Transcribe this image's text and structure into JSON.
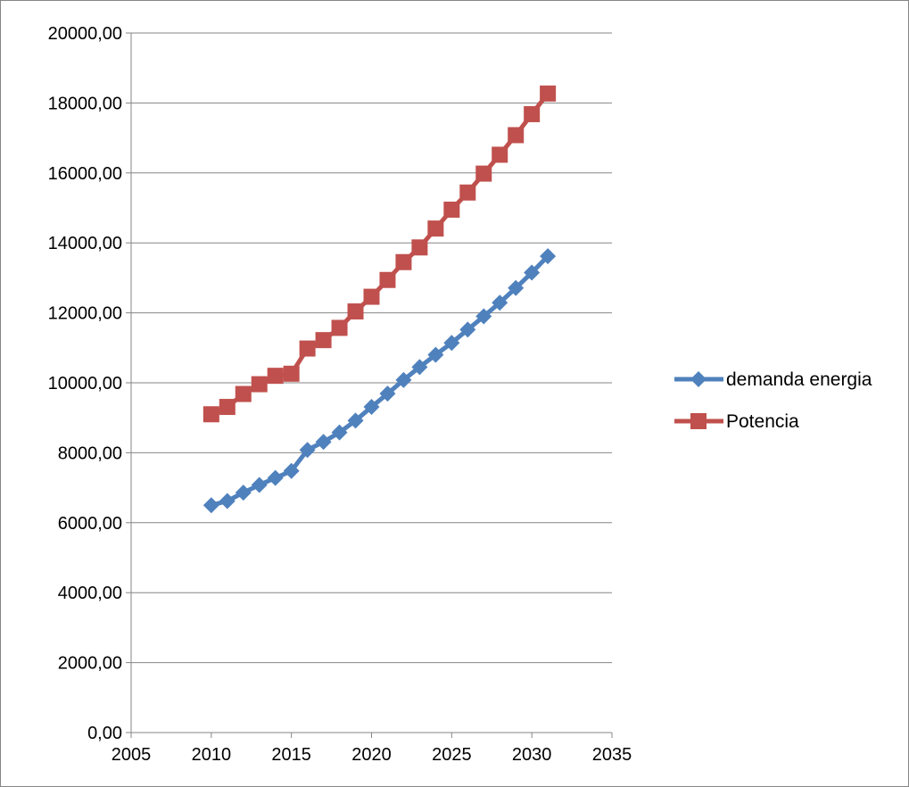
{
  "chart_data": {
    "type": "scatter",
    "title": "",
    "xlabel": "",
    "ylabel": "",
    "xlim": [
      2005,
      2035
    ],
    "ylim": [
      0,
      20000
    ],
    "x_ticks": [
      2005,
      2010,
      2015,
      2020,
      2025,
      2030,
      2035
    ],
    "y_ticks": [
      0,
      2000,
      4000,
      6000,
      8000,
      10000,
      12000,
      14000,
      16000,
      18000,
      20000
    ],
    "y_tick_labels": [
      "0,00",
      "2000,00",
      "4000,00",
      "6000,00",
      "8000,00",
      "10000,00",
      "12000,00",
      "14000,00",
      "16000,00",
      "18000,00",
      "20000,00"
    ],
    "grid": "horizontal major gridlines",
    "legend_position": "right",
    "x": [
      2010,
      2011,
      2012,
      2013,
      2014,
      2015,
      2016,
      2017,
      2018,
      2019,
      2020,
      2021,
      2022,
      2023,
      2024,
      2025,
      2026,
      2027,
      2028,
      2029,
      2030,
      2031
    ],
    "series": [
      {
        "name": "demanda energia",
        "color": "#4F81BD",
        "marker": "diamond",
        "values": [
          6500,
          6620,
          6860,
          7080,
          7280,
          7480,
          8080,
          8310,
          8580,
          8920,
          9310,
          9690,
          10080,
          10450,
          10800,
          11140,
          11520,
          11900,
          12290,
          12710,
          13150,
          13620
        ]
      },
      {
        "name": "Potencia",
        "color": "#C0504D",
        "marker": "square",
        "values": [
          9100,
          9310,
          9680,
          9960,
          10200,
          10260,
          10980,
          11220,
          11570,
          12040,
          12460,
          12940,
          13450,
          13870,
          14410,
          14950,
          15440,
          15980,
          16520,
          17080,
          17680,
          18270
        ]
      }
    ]
  }
}
